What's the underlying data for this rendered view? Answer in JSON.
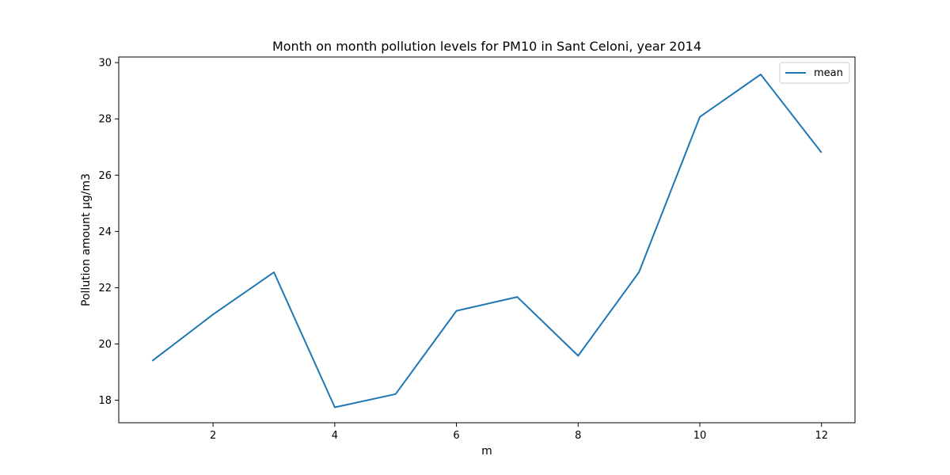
{
  "chart_data": {
    "type": "line",
    "title": "Month on month pollution levels for PM10 in Sant Celoni, year 2014",
    "xlabel": "m",
    "ylabel": "Pollution amount µg/m3",
    "x": [
      1,
      2,
      3,
      4,
      5,
      6,
      7,
      8,
      9,
      10,
      11,
      12
    ],
    "series": [
      {
        "name": "mean",
        "color": "#1f77b4",
        "values": [
          19.4,
          21.05,
          22.55,
          17.75,
          18.22,
          21.18,
          21.67,
          19.58,
          22.55,
          28.07,
          29.58,
          26.8
        ]
      }
    ],
    "xlim": [
      0.45,
      12.55
    ],
    "ylim": [
      17.2,
      30.2
    ],
    "xticks": [
      "2",
      "4",
      "6",
      "8",
      "10",
      "12"
    ],
    "yticks": [
      "18",
      "20",
      "22",
      "24",
      "26",
      "28",
      "30"
    ],
    "grid": false,
    "legend_position": "top-right"
  }
}
